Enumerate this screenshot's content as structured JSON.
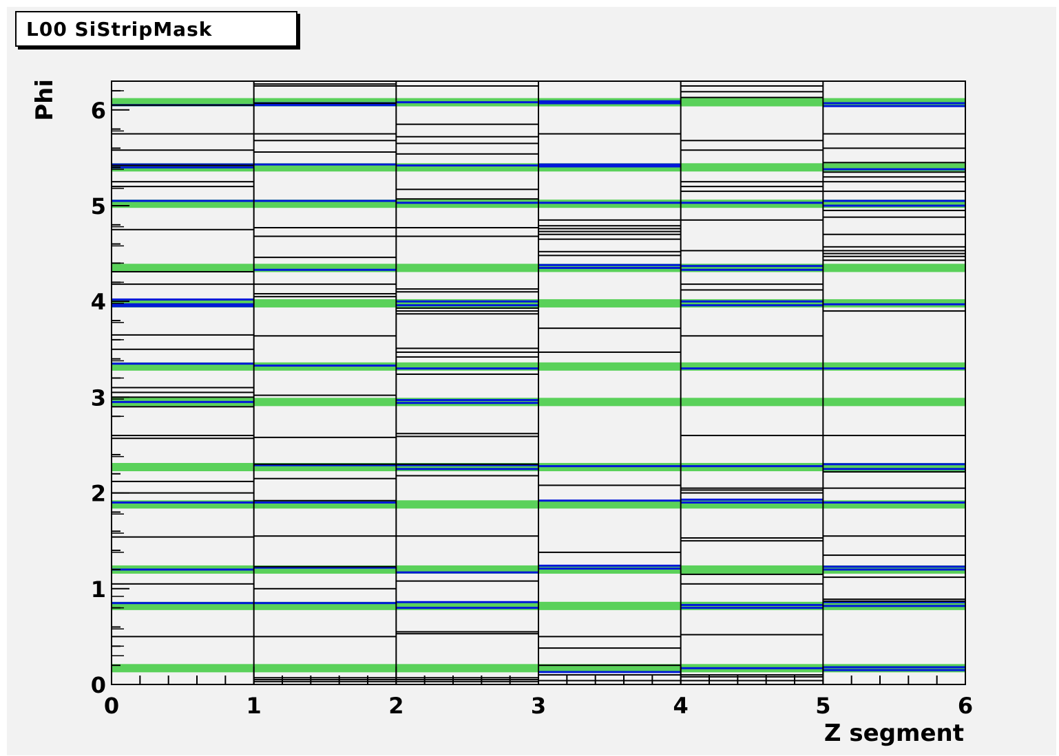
{
  "chart_data": {
    "type": "heatmap",
    "title": "L00 SiStripMask",
    "xlabel": "Z segment",
    "ylabel": "Phi",
    "xlim": [
      0,
      6
    ],
    "ylim": [
      0,
      6.3
    ],
    "x_ticks": [
      "0",
      "1",
      "2",
      "3",
      "4",
      "5",
      "6"
    ],
    "y_ticks": [
      "0",
      "1",
      "2",
      "3",
      "4",
      "5",
      "6"
    ],
    "colors": {
      "bad": "#000000",
      "masked_blue": "#0018d8",
      "masked_green": "#5ad15a",
      "background": "#f2f2f2"
    },
    "green_bands": {
      "segments": [
        [
          0.17,
          0.82,
          1.2,
          1.88,
          2.27,
          2.95,
          3.32,
          3.98,
          4.35,
          5.02,
          5.4,
          6.08
        ],
        [
          0.17,
          0.82,
          1.2,
          1.88,
          2.27,
          2.95,
          3.32,
          3.98,
          4.35,
          5.02,
          5.4,
          6.08
        ],
        [
          0.17,
          0.82,
          1.2,
          1.88,
          2.27,
          2.95,
          3.32,
          3.98,
          4.35,
          5.02,
          5.4,
          6.08
        ],
        [
          0.17,
          0.82,
          1.2,
          1.88,
          2.27,
          2.95,
          3.32,
          3.98,
          4.35,
          5.02,
          5.4,
          6.08
        ],
        [
          0.17,
          0.82,
          1.2,
          1.88,
          2.27,
          2.95,
          3.32,
          3.98,
          4.35,
          5.02,
          5.4,
          6.08
        ],
        [
          0.17,
          0.82,
          1.2,
          1.88,
          2.27,
          2.95,
          3.32,
          3.98,
          4.35,
          5.02,
          5.4,
          6.08
        ]
      ]
    },
    "blue_lines": {
      "segments": [
        [
          0.85,
          1.2,
          1.9,
          2.95,
          3.35,
          3.95,
          3.97,
          4.02,
          5.05,
          5.4,
          5.43,
          6.05
        ],
        [
          0.85,
          1.22,
          1.9,
          2.29,
          3.33,
          4.33,
          5.05,
          5.43,
          6.05,
          6.07
        ],
        [
          0.8,
          0.86,
          1.17,
          2.25,
          2.29,
          2.94,
          2.97,
          3.3,
          3.96,
          4.0,
          5.03,
          5.42,
          6.08
        ],
        [
          0.13,
          1.21,
          1.24,
          1.92,
          2.28,
          4.35,
          4.38,
          5.03,
          5.41,
          5.43,
          6.07,
          6.09
        ],
        [
          0.17,
          0.8,
          0.83,
          1.9,
          1.93,
          2.28,
          3.3,
          4.33,
          4.37,
          3.96,
          4.0,
          5.03
        ],
        [
          0.15,
          0.18,
          0.82,
          0.86,
          1.2,
          1.23,
          1.9,
          2.25,
          2.3,
          3.3,
          3.97,
          5.0,
          5.05,
          6.04,
          6.07,
          5.38
        ]
      ]
    },
    "black_lines": {
      "segments": [
        [
          0.5,
          1.05,
          1.54,
          2.0,
          2.12,
          2.57,
          2.6,
          2.9,
          3.0,
          3.05,
          3.1,
          3.5,
          3.65,
          4.18,
          4.31,
          4.75,
          5.2,
          5.25,
          5.42,
          5.58,
          5.75,
          6.05
        ],
        [
          0.03,
          0.05,
          0.07,
          0.5,
          1.0,
          1.23,
          1.55,
          1.92,
          2.15,
          2.3,
          2.58,
          3.02,
          3.64,
          4.05,
          4.08,
          4.18,
          4.46,
          4.68,
          4.77,
          5.56,
          5.68,
          5.75,
          6.07,
          6.25,
          6.27
        ],
        [
          0.03,
          0.05,
          0.07,
          0.53,
          0.55,
          1.08,
          1.55,
          2.18,
          2.3,
          2.59,
          2.62,
          3.24,
          3.42,
          3.47,
          3.51,
          3.87,
          3.9,
          3.93,
          4.1,
          4.13,
          4.68,
          4.77,
          5.07,
          5.17,
          5.54,
          5.65,
          5.72,
          5.85,
          6.25
        ],
        [
          0.04,
          0.1,
          0.2,
          0.38,
          0.5,
          1.38,
          2.08,
          3.47,
          3.72,
          4.48,
          4.52,
          4.65,
          4.7,
          4.73,
          4.76,
          4.79,
          4.85,
          5.75
        ],
        [
          0.04,
          0.08,
          0.1,
          0.52,
          1.05,
          1.15,
          1.5,
          1.53,
          2.0,
          2.03,
          2.05,
          2.6,
          3.64,
          4.12,
          4.18,
          4.53,
          4.85,
          5.15,
          5.2,
          5.25,
          5.58,
          5.68,
          6.13,
          6.19,
          6.25
        ],
        [
          0.87,
          0.89,
          1.12,
          1.35,
          1.55,
          2.05,
          2.22,
          2.6,
          3.9,
          4.43,
          4.47,
          4.5,
          4.53,
          4.57,
          4.7,
          4.88,
          4.95,
          5.15,
          5.25,
          5.3,
          5.35,
          5.45,
          5.6,
          5.75
        ]
      ]
    },
    "short_ticks_seg0": [
      0.3,
      0.4,
      0.58,
      0.8,
      0.92,
      1.05,
      1.38,
      1.58,
      1.78,
      2.0,
      2.38,
      2.57,
      2.8,
      2.98,
      3.2,
      3.38,
      3.6,
      3.78,
      3.98,
      4.2,
      4.4,
      4.58,
      4.78,
      5.0,
      5.18,
      5.38,
      5.58,
      5.78,
      6.0,
      6.2
    ]
  }
}
